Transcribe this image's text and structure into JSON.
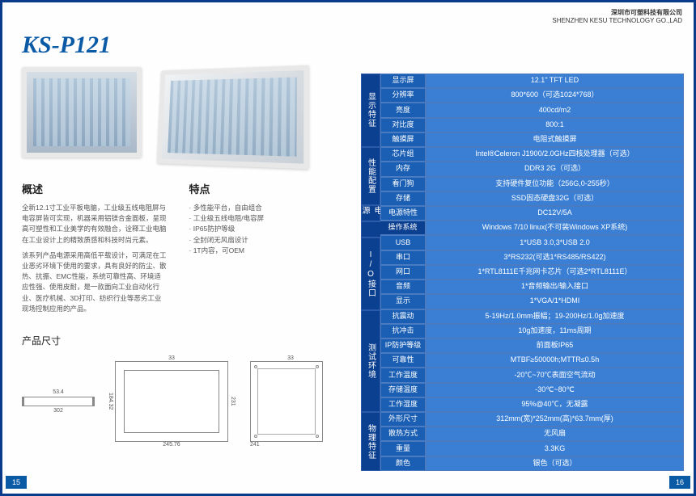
{
  "company": {
    "cn": "深圳市可塑科技有限公司",
    "en": "SHENZHEN KESU TECHNOLOGY GO.,LAD"
  },
  "product_title": "KS-P121",
  "overview": {
    "heading": "概述",
    "p1": "全新12.1寸工业平板电脑，工业级五线电阻屏与电容屏皆可实现，机器采用铝镁合金面板，呈现高可塑性和工业美学的有效融合，诠释工业电脑在工业设计上的精致质感和科技时尚元素。",
    "p2": "该系列产品电源采用高低平载设计，可满足在工业恶劣环境下使用的要求，具有良好的防尘、散热、抗振、EMC性能，系统可靠性高、环境适应性强、使用皮耐，是一款面向工业自动化行业、医疗机械、3D打印、纺织行业等恶劣工业现场控制应用的产品。"
  },
  "features": {
    "heading": "特点",
    "items": [
      "多性能平台，自由组合",
      "工业级五线电阻/电容屏",
      "IP65防护等级",
      "全封闭无风扇设计",
      "1T内容，可OEM"
    ]
  },
  "dimensions": {
    "heading": "产品尺寸",
    "side_w": "302",
    "side_d": "53.4",
    "front_w": "245.76",
    "front_h": "184.32",
    "front_outer_h": "231",
    "front_outer_w": "33",
    "back_w": "241",
    "back_top": "33"
  },
  "page_left": "15",
  "page_right": "16",
  "spec_categories": [
    {
      "name": "显示特征",
      "rows": [
        {
          "sub": "显示屏",
          "val": "12.1\" TFT LED"
        },
        {
          "sub": "分辨率",
          "val": "800*600（可选1024*768）"
        },
        {
          "sub": "亮度",
          "val": "400cd/m2"
        },
        {
          "sub": "对比度",
          "val": "800:1"
        },
        {
          "sub": "触摸屏",
          "val": "电阻式触摸屏"
        }
      ]
    },
    {
      "name": "性能配置",
      "rows": [
        {
          "sub": "芯片组",
          "val": "Intel®Celeron J1900/2.0GHz四核处理器（可选）"
        },
        {
          "sub": "内存",
          "val": "DDR3 2G（可选）"
        },
        {
          "sub": "看门狗",
          "val": "支持硬件复位功能（256G,0-255秒）"
        },
        {
          "sub": "存储",
          "val": "SSD固态硬盘32G（可选）"
        }
      ]
    },
    {
      "name": "电源",
      "rows": [
        {
          "sub": "电源特性",
          "val": "DC12V/5A"
        }
      ]
    },
    {
      "name": "操作系统",
      "fullrow": true,
      "rows": [
        {
          "sub": "",
          "val": "Windows 7/10 linux(不可装Windows XP系统)"
        }
      ]
    },
    {
      "name": "I/O接口",
      "rows": [
        {
          "sub": "USB",
          "val": "1*USB 3.0,3*USB 2.0"
        },
        {
          "sub": "串口",
          "val": "3*RS232(可选1*RS485/RS422)"
        },
        {
          "sub": "网口",
          "val": "1*RTL8111E千兆网卡芯片（可选2*RTL8111E）"
        },
        {
          "sub": "音频",
          "val": "1*音频输出/输入接口"
        },
        {
          "sub": "显示",
          "val": "1*VGA/1*HDMI"
        }
      ]
    },
    {
      "name": "测试环境",
      "rows": [
        {
          "sub": "抗震动",
          "val": "5-19Hz/1.0mm振幅；19-200Hz/1.0g加速度"
        },
        {
          "sub": "抗冲击",
          "val": "10g加速度，11ms周期"
        },
        {
          "sub": "IP防护等级",
          "val": "前面板IP65"
        },
        {
          "sub": "可靠性",
          "val": "MTBF≥50000h;MTTR≤0.5h"
        },
        {
          "sub": "工作温度",
          "val": "-20℃~70℃表面空气流动"
        },
        {
          "sub": "存储温度",
          "val": "-30℃~80℃"
        },
        {
          "sub": "工作湿度",
          "val": "95%@40℃，无凝露"
        }
      ]
    },
    {
      "name": "物理特征",
      "rows": [
        {
          "sub": "外形尺寸",
          "val": "312mm(宽)*252mm(高)*63.7mm(厚)"
        },
        {
          "sub": "散热方式",
          "val": "无风扇"
        },
        {
          "sub": "重量",
          "val": "3.3KG"
        },
        {
          "sub": "颜色",
          "val": "银色（可选）"
        }
      ]
    }
  ],
  "colors": {
    "border": "#0a3a8a",
    "title": "#0b5aa6",
    "cat_bg": "#0b3f8f",
    "sub_bg": "#1a5fb4",
    "val_bg": "#3a7fd4",
    "cell_border": "#4a7ac0"
  }
}
